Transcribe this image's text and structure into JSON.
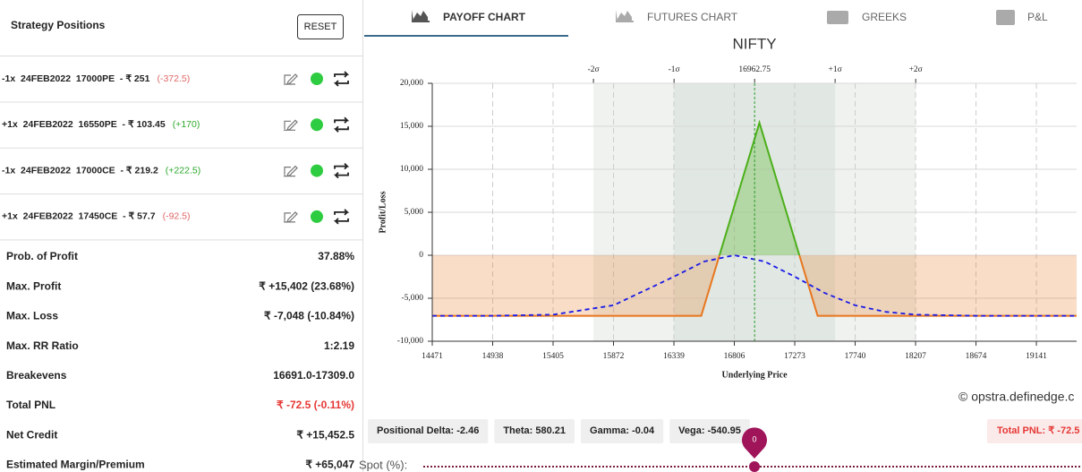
{
  "sidebar": {
    "title": "Strategy Positions",
    "reset": "RESET",
    "positions": [
      {
        "text": "-1x  24FEB2022  17000PE  - ₹ 251",
        "pnl": "(-372.5)",
        "pnl_color": "#e06666"
      },
      {
        "text": "+1x  24FEB2022  16550PE  - ₹ 103.45",
        "pnl": "(+170)",
        "pnl_color": "#2aa82a"
      },
      {
        "text": "-1x  24FEB2022  17000CE  - ₹ 219.2",
        "pnl": "(+222.5)",
        "pnl_color": "#2aa82a"
      },
      {
        "text": "+1x  24FEB2022  17450CE  - ₹ 57.7",
        "pnl": "(-92.5)",
        "pnl_color": "#e06666"
      }
    ],
    "stats": [
      {
        "label": "Prob. of Profit",
        "value": "37.88%"
      },
      {
        "label": "Max. Profit",
        "value": "₹ +15,402 (23.68%)"
      },
      {
        "label": "Max. Loss",
        "value": "₹ -7,048 (-10.84%)"
      },
      {
        "label": "Max. RR Ratio",
        "value": "1:2.19"
      },
      {
        "label": "Breakevens",
        "value": "16691.0-17309.0"
      },
      {
        "label": "Total PNL",
        "value": "₹ -72.5 (-0.11%)",
        "color": "#e53935"
      },
      {
        "label": "Net Credit",
        "value": "₹ +15,452.5"
      },
      {
        "label": "Estimated Margin/Premium",
        "value": "₹ +65,047"
      }
    ]
  },
  "tabs": [
    "PAYOFF CHART",
    "FUTURES CHART",
    "GREEKS",
    "P&L"
  ],
  "chart_data": {
    "type": "line",
    "title": "NIFTY",
    "xlabel": "Underlying Price",
    "ylabel": "Profit/Loss",
    "xlim": [
      14471,
      19452
    ],
    "ylim": [
      -10000,
      20000
    ],
    "xticks": [
      14471,
      14938,
      15405,
      15872,
      16339,
      16806,
      17273,
      17740,
      18207,
      18674,
      19141
    ],
    "yticks": [
      {
        "value": -10000,
        "label": "-10,000"
      },
      {
        "value": -5000,
        "label": "-5,000"
      },
      0,
      {
        "value": 5000,
        "label": "5,000"
      },
      {
        "value": 10000,
        "label": "10,000"
      },
      {
        "value": 15000,
        "label": "15,000"
      },
      {
        "value": 20000,
        "label": "20,000"
      }
    ],
    "top_ticks": [
      {
        "value": 15717,
        "label": "-2σ"
      },
      {
        "value": 16340,
        "label": "-1σ"
      },
      {
        "value": 16962.75,
        "label": "16962.75"
      },
      {
        "value": 17585,
        "label": "+1σ"
      },
      {
        "value": 18208,
        "label": "+2σ"
      }
    ],
    "grid": true,
    "series": [
      {
        "color": "#e8761f",
        "profit_color": "#4caf1a",
        "x": [
          14471,
          16550,
          17000,
          17450,
          19452
        ],
        "values": [
          -7048,
          -7048,
          15402,
          -7048,
          -7048
        ]
      },
      {
        "color": "#1a1ae6",
        "dashed": true,
        "x": [
          14471,
          14938,
          15405,
          15872,
          16339,
          16572,
          16806,
          17040,
          17273,
          17506,
          17740,
          17973,
          18207,
          18674,
          19141,
          19452
        ],
        "values": [
          -7048,
          -7040,
          -6910,
          -5820,
          -2490,
          -730,
          0,
          -730,
          -2490,
          -4400,
          -5820,
          -6580,
          -6910,
          -7040,
          -7048,
          -7048
        ]
      }
    ]
  },
  "watermark": "© opstra.definedge.c",
  "greeks": [
    "Positional Delta: -2.46",
    "Theta: 580.21",
    "Gamma: -0.04",
    "Vega: -540.95"
  ],
  "total_pnl": "Total PNL: ₹ -72.5",
  "spot": {
    "label": "Spot (%):",
    "value": 0
  }
}
